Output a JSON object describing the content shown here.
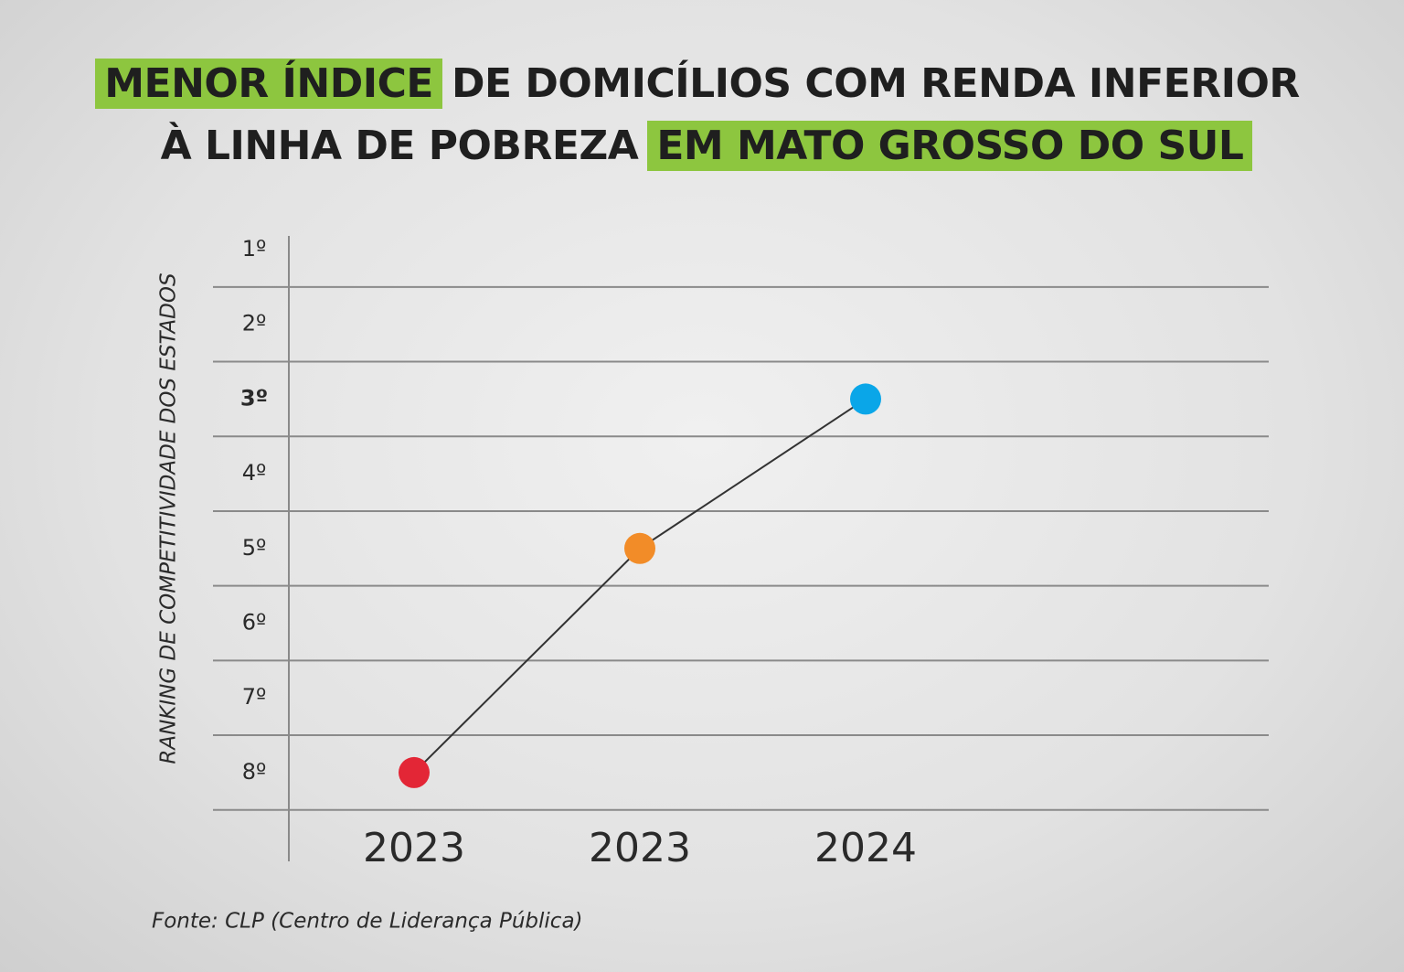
{
  "chart_data": {
    "type": "line",
    "title_lines": [
      [
        {
          "text": "MENOR ÍNDICE",
          "highlight": true
        },
        {
          "text": "DE DOMICÍLIOS COM RENDA INFERIOR",
          "highlight": false
        }
      ],
      [
        {
          "text": "À LINHA DE POBREZA",
          "highlight": false
        },
        {
          "text": "EM MATO GROSSO DO SUL",
          "highlight": true
        }
      ]
    ],
    "highlight_color": "#8dc63f",
    "y_label": "RANKING DE COMPETITIVIDADE DOS ESTADOS",
    "categories": [
      "2023",
      "2023",
      "2024"
    ],
    "values": [
      8,
      5,
      3
    ],
    "point_colors": [
      "#e32636",
      "#f28c28",
      "#0aa6e8"
    ],
    "line_color": "#333333",
    "ylim": [
      0.5,
      8.5
    ],
    "y_inverted": true,
    "yticks": [
      {
        "value": 1,
        "label": "1º"
      },
      {
        "value": 2,
        "label": "2º"
      },
      {
        "value": 3,
        "label": "3º"
      },
      {
        "value": 4,
        "label": "4º"
      },
      {
        "value": 5,
        "label": "5º"
      },
      {
        "value": 6,
        "label": "6º"
      },
      {
        "value": 7,
        "label": "7º"
      },
      {
        "value": 8,
        "label": "8º"
      }
    ],
    "grid": true,
    "source": "Fonte: CLP (Centro de Liderança Pública)"
  }
}
